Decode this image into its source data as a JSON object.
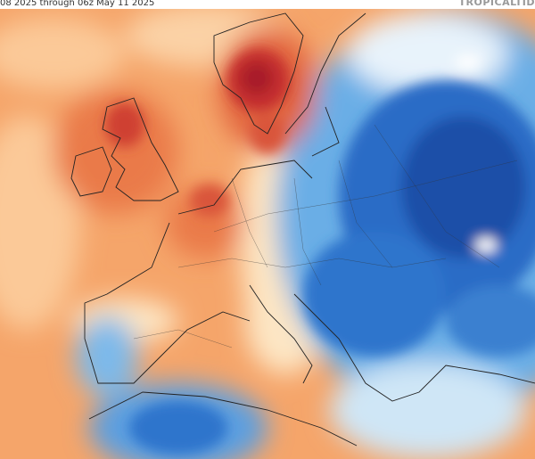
{
  "header": {
    "title": "08 2025 through 06z May 11 2025",
    "brand": "TROPICALTID"
  }
}
